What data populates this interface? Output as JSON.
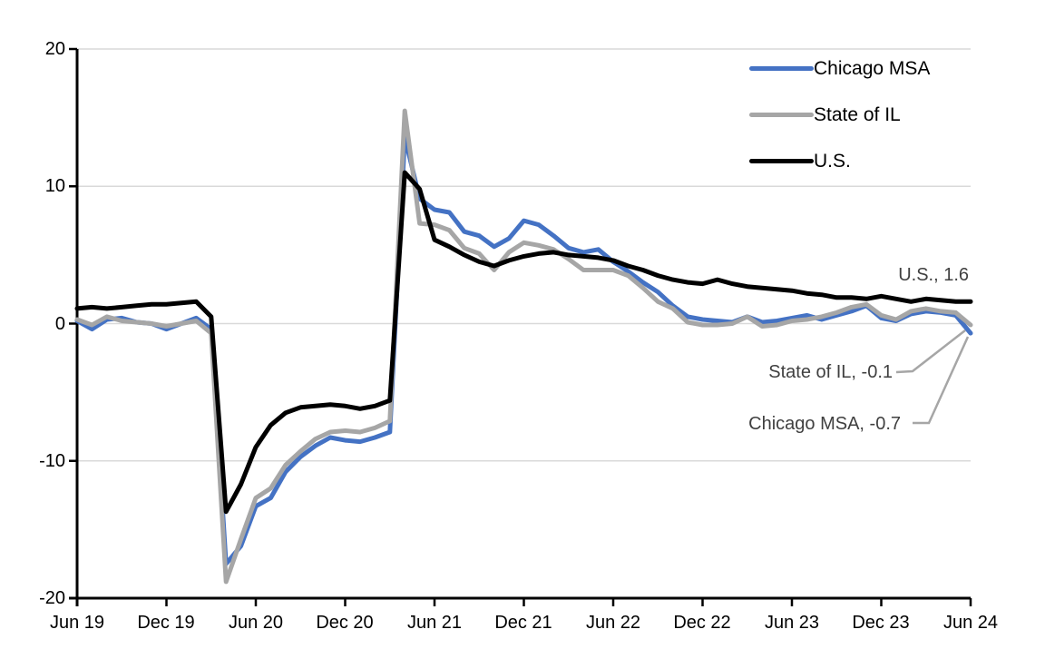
{
  "chart_data": {
    "type": "line",
    "title": "",
    "xlabel": "",
    "ylabel": "",
    "ylim": [
      -20,
      20
    ],
    "grid": true,
    "gridline_values": [
      20,
      10,
      0,
      -10
    ],
    "y_tick_values": [
      20,
      10,
      0,
      -10,
      -20
    ],
    "y_tick_labels": [
      "20",
      "10",
      "0",
      "-10",
      "-20"
    ],
    "x_tick_labels": [
      "Jun 19",
      "Dec 19",
      "Jun 20",
      "Dec 20",
      "Jun 21",
      "Dec 21",
      "Jun 22",
      "Dec 22",
      "Jun 23",
      "Dec 23",
      "Jun 24"
    ],
    "x_tick_month_index": [
      0,
      6,
      12,
      18,
      24,
      30,
      36,
      42,
      48,
      54,
      60
    ],
    "x": [
      "2019-06",
      "2019-07",
      "2019-08",
      "2019-09",
      "2019-10",
      "2019-11",
      "2019-12",
      "2020-01",
      "2020-02",
      "2020-03",
      "2020-04",
      "2020-05",
      "2020-06",
      "2020-07",
      "2020-08",
      "2020-09",
      "2020-10",
      "2020-11",
      "2020-12",
      "2021-01",
      "2021-02",
      "2021-03",
      "2021-04",
      "2021-05",
      "2021-06",
      "2021-07",
      "2021-08",
      "2021-09",
      "2021-10",
      "2021-11",
      "2021-12",
      "2022-01",
      "2022-02",
      "2022-03",
      "2022-04",
      "2022-05",
      "2022-06",
      "2022-07",
      "2022-08",
      "2022-09",
      "2022-10",
      "2022-11",
      "2022-12",
      "2023-01",
      "2023-02",
      "2023-03",
      "2023-04",
      "2023-05",
      "2023-06",
      "2023-07",
      "2023-08",
      "2023-09",
      "2023-10",
      "2023-11",
      "2023-12",
      "2024-01",
      "2024-02",
      "2024-03",
      "2024-04",
      "2024-05",
      "2024-06"
    ],
    "series": [
      {
        "name": "Chicago MSA",
        "color": "#4472C4",
        "values": [
          0.2,
          -0.4,
          0.3,
          0.4,
          0.1,
          0.0,
          -0.4,
          0.0,
          0.4,
          -0.4,
          -17.5,
          -16.2,
          -13.3,
          -12.7,
          -10.8,
          -9.7,
          -8.9,
          -8.3,
          -8.5,
          -8.6,
          -8.3,
          -7.9,
          13.6,
          9.1,
          8.3,
          8.1,
          6.7,
          6.4,
          5.6,
          6.2,
          7.5,
          7.2,
          6.4,
          5.5,
          5.2,
          5.4,
          4.5,
          3.8,
          3.0,
          2.3,
          1.3,
          0.5,
          0.3,
          0.2,
          0.1,
          0.5,
          0.1,
          0.2,
          0.4,
          0.6,
          0.3,
          0.6,
          0.9,
          1.3,
          0.4,
          0.2,
          0.7,
          0.9,
          0.8,
          0.6,
          -0.7
        ]
      },
      {
        "name": "State of IL",
        "color": "#A6A6A6",
        "values": [
          0.3,
          -0.1,
          0.5,
          0.2,
          0.1,
          0.0,
          -0.2,
          0.0,
          0.2,
          -0.7,
          -18.8,
          -15.7,
          -12.7,
          -12.0,
          -10.3,
          -9.3,
          -8.4,
          -7.9,
          -7.8,
          -7.9,
          -7.6,
          -7.1,
          15.5,
          7.3,
          7.2,
          6.8,
          5.5,
          5.1,
          3.9,
          5.2,
          5.9,
          5.7,
          5.4,
          4.7,
          3.9,
          3.9,
          3.9,
          3.5,
          2.6,
          1.6,
          1.1,
          0.1,
          -0.1,
          -0.1,
          0.0,
          0.5,
          -0.2,
          -0.1,
          0.2,
          0.3,
          0.5,
          0.8,
          1.2,
          1.4,
          0.6,
          0.3,
          0.9,
          1.1,
          0.9,
          0.8,
          -0.1
        ]
      },
      {
        "name": "U.S.",
        "color": "#000000",
        "values": [
          1.1,
          1.2,
          1.1,
          1.2,
          1.3,
          1.4,
          1.4,
          1.5,
          1.6,
          0.5,
          -13.7,
          -11.7,
          -9.0,
          -7.4,
          -6.5,
          -6.1,
          -6.0,
          -5.9,
          -6.0,
          -6.2,
          -6.0,
          -5.6,
          11.0,
          9.8,
          6.1,
          5.6,
          5.0,
          4.5,
          4.2,
          4.6,
          4.9,
          5.1,
          5.2,
          5.0,
          4.9,
          4.8,
          4.6,
          4.2,
          3.9,
          3.5,
          3.2,
          3.0,
          2.9,
          3.2,
          2.9,
          2.7,
          2.6,
          2.5,
          2.4,
          2.2,
          2.1,
          1.9,
          1.9,
          1.8,
          2.0,
          1.8,
          1.6,
          1.8,
          1.7,
          1.6,
          1.6
        ]
      }
    ],
    "legend": {
      "position": "top-right"
    },
    "end_labels": [
      {
        "text": "U.S., 1.6",
        "series": "U.S.",
        "value": 1.6
      },
      {
        "text": "State of IL, -0.1",
        "series": "State of IL",
        "value": -0.1
      },
      {
        "text": "Chicago MSA, -0.7",
        "series": "Chicago MSA",
        "value": -0.7
      }
    ],
    "colors": {
      "gridline": "#d9d9d9",
      "axis": "#000000",
      "leader_line": "#a6a6a6",
      "annotation_text": "#404040"
    }
  }
}
